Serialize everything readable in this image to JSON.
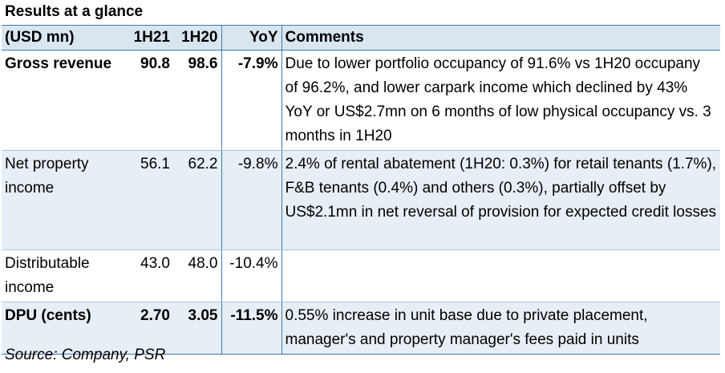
{
  "title": "Results at a glance",
  "table": {
    "headers": [
      "(USD mn)",
      "1H21",
      "1H20",
      "YoY",
      "Comments"
    ],
    "rows": [
      {
        "metric": "Gross revenue",
        "h1_21": "90.8",
        "h1_20": "98.6",
        "yoy": "-7.9%",
        "comment": "Due to lower portfolio occupancy of 91.6% vs 1H20 occupany of 96.2%, and lower carpark income which declined by 43% YoY or US$2.7mn on 6 months of low physical occupancy vs. 3 months in 1H20"
      },
      {
        "metric": "Net property income",
        "h1_21": "56.1",
        "h1_20": "62.2",
        "yoy": "-9.8%",
        "comment": "2.4% of rental abatement (1H20: 0.3%) for retail tenants (1.7%), F&B tenants (0.4%) and others (0.3%), partially offset by US$2.1mn in net reversal of provision for expected credit losses"
      },
      {
        "metric": "Distributable income",
        "h1_21": "43.0",
        "h1_20": "48.0",
        "yoy": "-10.4%",
        "comment": ""
      },
      {
        "metric": "DPU (cents)",
        "h1_21": "2.70",
        "h1_20": "3.05",
        "yoy": "-11.5%",
        "comment": "0.55% increase in unit base due to private placement, manager's and property manager's fees paid in units"
      }
    ]
  },
  "source": "Source: Company, PSR"
}
